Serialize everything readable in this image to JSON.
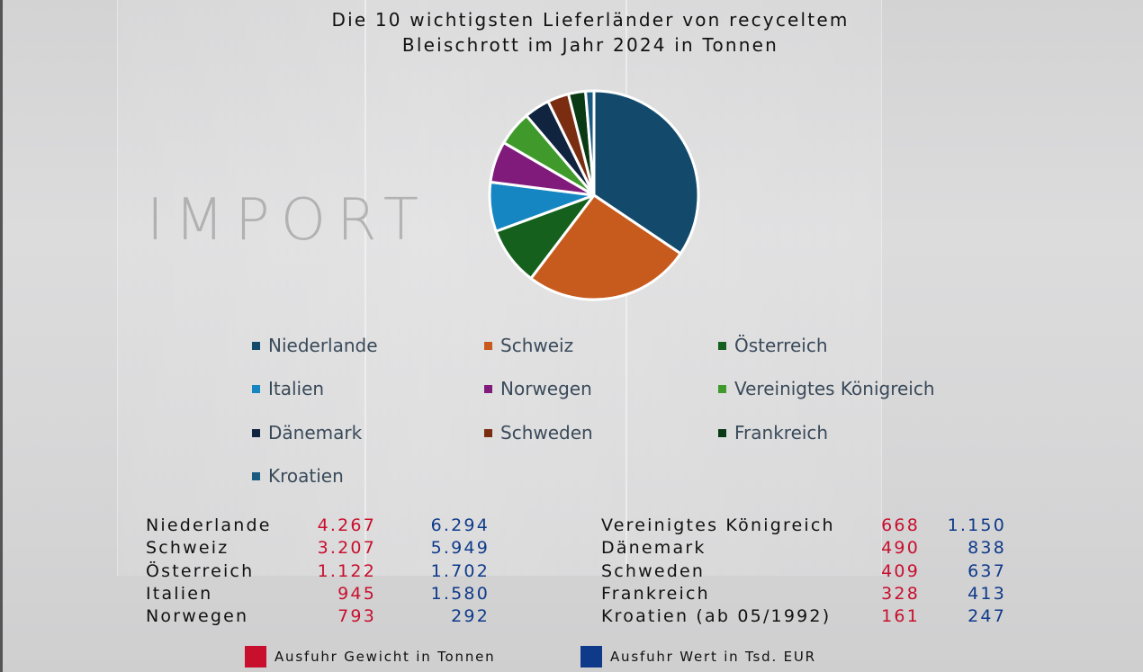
{
  "chart_data": {
    "type": "pie",
    "title": "Die 10 wichtigsten Lieferländer von recyceltem Bleischrott im Jahr 2024 in Tonnen",
    "title_line1": "Die 10 wichtigsten Lieferländer von recyceltem",
    "title_line2": "Bleischrott im Jahr 2024 in Tonnen",
    "watermark": "IMPORT",
    "categories": [
      "Niederlande",
      "Schweiz",
      "Österreich",
      "Italien",
      "Norwegen",
      "Vereinigtes Königreich",
      "Dänemark",
      "Schweden",
      "Frankreich",
      "Kroatien"
    ],
    "values": [
      4267,
      3207,
      1122,
      945,
      793,
      668,
      490,
      409,
      328,
      161
    ],
    "colors": [
      "#134a6b",
      "#c75b1e",
      "#14601c",
      "#1586c2",
      "#801b7c",
      "#3f9a2b",
      "#10233f",
      "#7a2d10",
      "#0a3a13",
      "#1a5a80"
    ],
    "legend": [
      "Niederlande",
      "Schweiz",
      "Österreich",
      "Italien",
      "Norwegen",
      "Vereinigtes Königreich",
      "Dänemark",
      "Schweden",
      "Frankreich",
      "Kroatien"
    ],
    "legend_placement": "bottom"
  },
  "table": {
    "left": [
      {
        "name": "Niederlande",
        "weight": "4.267",
        "value": "6.294"
      },
      {
        "name": "Schweiz",
        "weight": "3.207",
        "value": "5.949"
      },
      {
        "name": "Österreich",
        "weight": "1.122",
        "value": "1.702"
      },
      {
        "name": "Italien",
        "weight": "945",
        "value": "1.580"
      },
      {
        "name": "Norwegen",
        "weight": "793",
        "value": "292"
      }
    ],
    "right": [
      {
        "name": "Vereinigtes Königreich",
        "weight": "668",
        "value": "1.150"
      },
      {
        "name": "Dänemark",
        "weight": "490",
        "value": "838"
      },
      {
        "name": "Schweden",
        "weight": "409",
        "value": "637"
      },
      {
        "name": "Frankreich",
        "weight": "328",
        "value": "413"
      },
      {
        "name": "Kroatien (ab 05/1992)",
        "weight": "161",
        "value": "247"
      }
    ]
  },
  "footer_legend": {
    "weight_label": "Ausfuhr Gewicht in Tonnen",
    "weight_color": "#c8102e",
    "value_label": "Ausfuhr Wert in Tsd. EUR",
    "value_color": "#0f3a8a"
  }
}
